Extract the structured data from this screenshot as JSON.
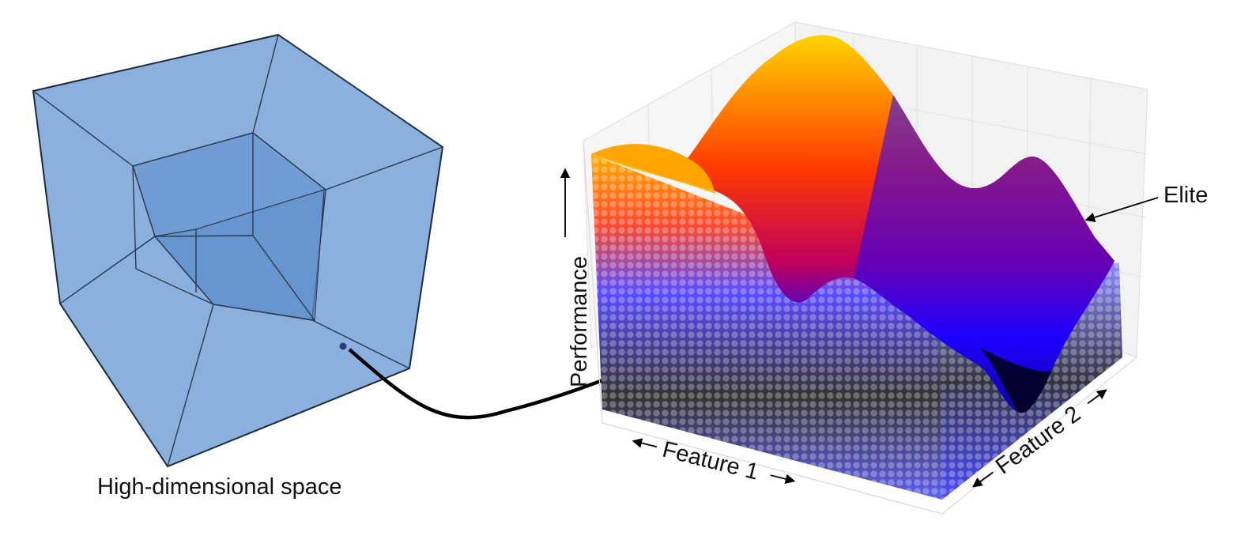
{
  "labels": {
    "space": "High-dimensional space",
    "performance": "Performance",
    "feature1": "Feature 1",
    "feature2": "Feature 2",
    "elite": "Elite"
  },
  "colors": {
    "cube_fill": "#7ea7d9",
    "cube_edge": "#1d2a3a",
    "surface_high": "#ffd400",
    "surface_mid": "#ff2a00",
    "surface_low": "#0a00ff",
    "surface_min": "#000000",
    "points_low": "#3b3bff",
    "points_dark": "#222222"
  }
}
